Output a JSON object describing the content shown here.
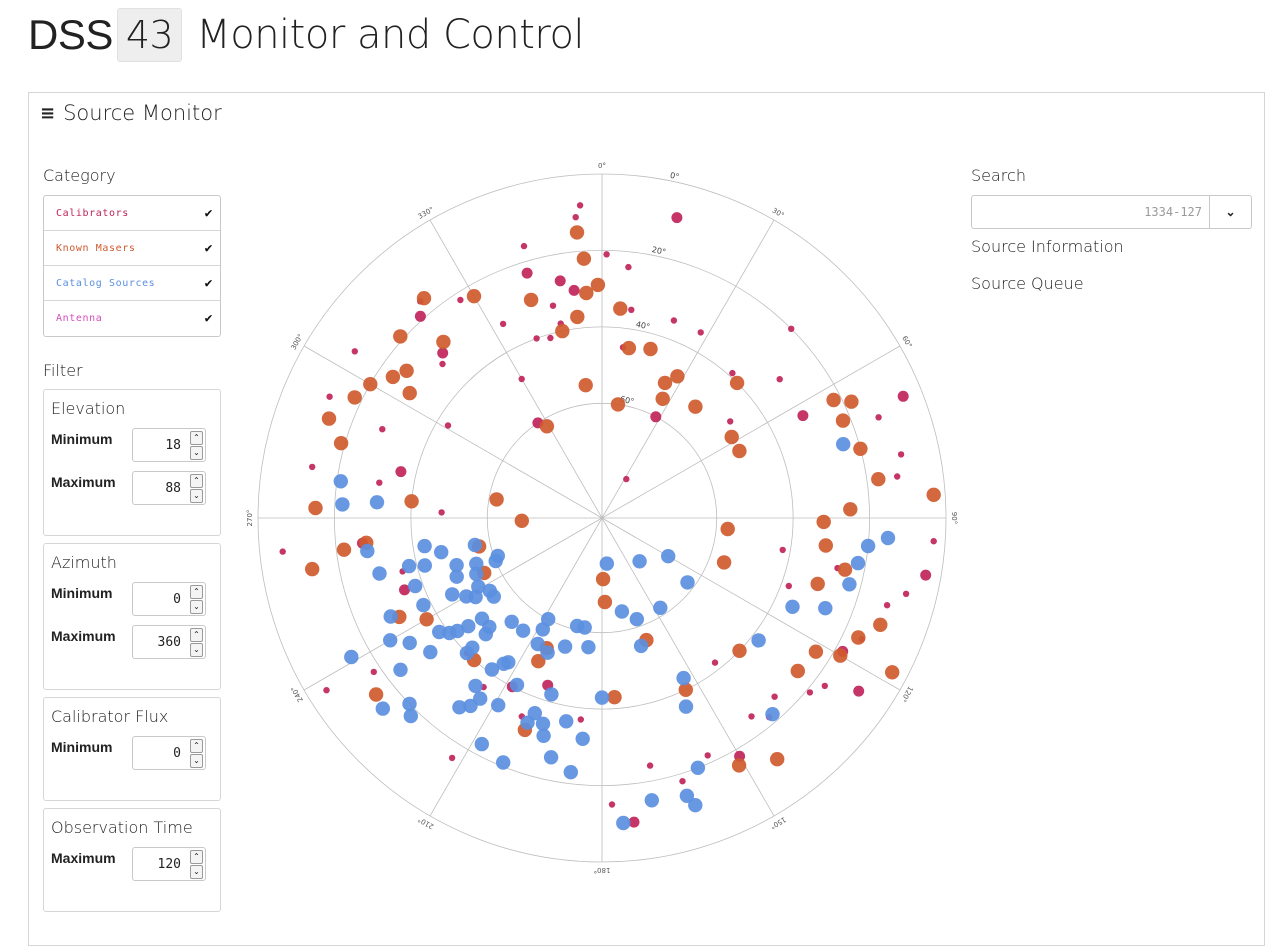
{
  "header": {
    "prefix": "DSS",
    "station": "43",
    "title": "Monitor and Control"
  },
  "panel": {
    "title": "Source Monitor"
  },
  "category": {
    "label": "Category",
    "items": [
      {
        "label": "Calibrators",
        "color": "#c0245a"
      },
      {
        "label": "Known Masers",
        "color": "#cf5a2e"
      },
      {
        "label": "Catalog Sources",
        "color": "#5b8fe0"
      },
      {
        "label": "Antenna",
        "color": "#d44fbd"
      }
    ]
  },
  "filter": {
    "label": "Filter",
    "elevation": {
      "title": "Elevation",
      "min_label": "Minimum",
      "min": "18",
      "max_label": "Maximum",
      "max": "88"
    },
    "azimuth": {
      "title": "Azimuth",
      "min_label": "Minimum",
      "min": "0",
      "max_label": "Maximum",
      "max": "360"
    },
    "calibrator_flux": {
      "title": "Calibrator Flux",
      "min_label": "Minimum",
      "min": "0"
    },
    "observation_time": {
      "title": "Observation Time",
      "max_label": "Maximum",
      "max": "120"
    }
  },
  "search": {
    "label": "Search",
    "placeholder": "1334-127"
  },
  "links": {
    "source_information": "Source Information",
    "source_queue": "Source Queue"
  },
  "chart_data": {
    "type": "scatter",
    "coordinate_system": "polar",
    "angle_ticks": [
      "0°",
      "30°",
      "60°",
      "90°",
      "120°",
      "150°",
      "180°",
      "210°",
      "240°",
      "270°",
      "300°",
      "330°"
    ],
    "radial_ticks": [
      "0°",
      "20°",
      "40°",
      "60°"
    ],
    "radial_range_elevation": [
      90,
      0
    ],
    "series": [
      {
        "name": "Calibrators",
        "color": "#c0245a",
        "points": [
          [
            326,
            60
          ],
          [
            356,
            8
          ],
          [
            7,
            45
          ],
          [
            32,
            78
          ],
          [
            28,
            60
          ],
          [
            45,
            20
          ],
          [
            53,
            48
          ],
          [
            78,
            10
          ],
          [
            68,
            5
          ],
          [
            82,
            12
          ],
          [
            70,
            13
          ],
          [
            94,
            3
          ],
          [
            100,
            4
          ],
          [
            104,
            8
          ],
          [
            107,
            12
          ],
          [
            115,
            15
          ],
          [
            124,
            9
          ],
          [
            130,
            19
          ],
          [
            140,
            22
          ],
          [
            143,
            25
          ],
          [
            150,
            18
          ],
          [
            156,
            22
          ],
          [
            163,
            18
          ],
          [
            169,
            24
          ],
          [
            174,
            10
          ],
          [
            178,
            15
          ],
          [
            186,
            37
          ],
          [
            202,
            34
          ],
          [
            208,
            40
          ],
          [
            215,
            36
          ],
          [
            225,
            40
          ],
          [
            236,
            18
          ],
          [
            250,
            35
          ],
          [
            264,
            6
          ],
          [
            272,
            48
          ],
          [
            280,
            13
          ],
          [
            283,
            36
          ],
          [
            292,
            28
          ],
          [
            301,
            43
          ],
          [
            304,
            12
          ],
          [
            316,
            30
          ],
          [
            320,
            16
          ],
          [
            327,
            22
          ],
          [
            333,
            33
          ],
          [
            343,
            23
          ],
          [
            344,
            16
          ],
          [
            344,
            41
          ],
          [
            347,
            33
          ],
          [
            350,
            27
          ],
          [
            355,
            11
          ],
          [
            1,
            21
          ],
          [
            8,
            35
          ],
          [
            14,
            9
          ],
          [
            20,
            35
          ],
          [
            42,
            39
          ],
          [
            52,
            31
          ],
          [
            63,
            31
          ],
          [
            100,
            42
          ],
          [
            102,
            27
          ],
          [
            110,
            38
          ],
          [
            119,
            18
          ],
          [
            127,
            17
          ],
          [
            136,
            25
          ],
          [
            142,
            42
          ],
          [
            198,
            44
          ],
          [
            212,
            16
          ],
          [
            238,
            5
          ],
          [
            255,
            36
          ],
          [
            264,
            27
          ],
          [
            279,
            31
          ],
          [
            294,
            12
          ],
          [
            314,
            32
          ],
          [
            318,
            19
          ],
          [
            330,
            48
          ],
          [
            340,
            40
          ],
          [
            348,
            38
          ],
          [
            353,
            30
          ],
          [
            6,
            24
          ],
          [
            28,
            35
          ]
        ]
      },
      {
        "name": "Known Masers",
        "color": "#cf5a2e",
        "points": [
          [
            353,
            37
          ],
          [
            356,
            31
          ],
          [
            359,
            29
          ],
          [
            356,
            22
          ],
          [
            355,
            15
          ],
          [
            348,
            40
          ],
          [
            342,
            30
          ],
          [
            330,
            23
          ],
          [
            321,
            16
          ],
          [
            318,
            28
          ],
          [
            312,
            19
          ],
          [
            307,
            26
          ],
          [
            304,
            24
          ],
          [
            303,
            30
          ],
          [
            300,
            20
          ],
          [
            296,
            18
          ],
          [
            290,
            14
          ],
          [
            286,
            19
          ],
          [
            272,
            15
          ],
          [
            264,
            28
          ],
          [
            263,
            22
          ],
          [
            260,
            13
          ],
          [
            240,
            37
          ],
          [
            245,
            56
          ],
          [
            200,
            31
          ],
          [
            203,
            53
          ],
          [
            204,
            49
          ],
          [
            222,
            40
          ],
          [
            232,
            15
          ],
          [
            244,
            31
          ],
          [
            257,
            57
          ],
          [
            268,
            69
          ],
          [
            275,
            40
          ],
          [
            329,
            62
          ],
          [
            25,
            51
          ],
          [
            27,
            55
          ],
          [
            16,
            44
          ],
          [
            8,
            60
          ],
          [
            5,
            35
          ],
          [
            9,
            45
          ],
          [
            40,
            52
          ],
          [
            63,
            22
          ],
          [
            65,
            18
          ],
          [
            68,
            22
          ],
          [
            75,
            20
          ],
          [
            82,
            17
          ],
          [
            86,
            3
          ],
          [
            88,
            25
          ],
          [
            91,
            32
          ],
          [
            97,
            31
          ],
          [
            102,
            25
          ],
          [
            107,
            31
          ],
          [
            111,
            12
          ],
          [
            115,
            16
          ],
          [
            118,
            4
          ],
          [
            120,
            18
          ],
          [
            122,
            24
          ],
          [
            128,
            25
          ],
          [
            134,
            40
          ],
          [
            144,
            12
          ],
          [
            151,
            16
          ],
          [
            154,
            40
          ],
          [
            160,
            56
          ],
          [
            176,
            43
          ],
          [
            178,
            68
          ],
          [
            179,
            74
          ],
          [
            353,
            55
          ],
          [
            28,
            48
          ],
          [
            45,
            40
          ],
          [
            58,
            50
          ],
          [
            64,
            50
          ],
          [
            95,
            57
          ],
          [
            110,
            56
          ],
          [
            280,
            62
          ]
        ]
      },
      {
        "name": "Catalog Sources",
        "color": "#5b8fe0",
        "points": [
          [
            199,
            36
          ],
          [
            213,
            45
          ],
          [
            232,
            42
          ],
          [
            225,
            42
          ],
          [
            225,
            47
          ],
          [
            208,
            57
          ],
          [
            208,
            60
          ],
          [
            224,
            18
          ],
          [
            217,
            35
          ],
          [
            217,
            28
          ],
          [
            237,
            30
          ],
          [
            245,
            29
          ],
          [
            229,
            14
          ],
          [
            215,
            30
          ],
          [
            226,
            20
          ],
          [
            233,
            24
          ],
          [
            241,
            53
          ],
          [
            237,
            55
          ],
          [
            243,
            46
          ],
          [
            234,
            55
          ],
          [
            248,
            49
          ],
          [
            235,
            38
          ],
          [
            241,
            15
          ],
          [
            231,
            45
          ],
          [
            230,
            49
          ],
          [
            214,
            33
          ],
          [
            225,
            40
          ],
          [
            221,
            54
          ],
          [
            215,
            54
          ],
          [
            202,
            52
          ],
          [
            207,
            53
          ],
          [
            196,
            42
          ],
          [
            196,
            55
          ],
          [
            193,
            61
          ],
          [
            189,
            61
          ],
          [
            180,
            43
          ],
          [
            159,
            20
          ],
          [
            156,
            36
          ],
          [
            163,
            14
          ],
          [
            162,
            11
          ],
          [
            170,
            15
          ],
          [
            176,
            10
          ],
          [
            185,
            32
          ],
          [
            187,
            23
          ],
          [
            196,
            34
          ],
          [
            200,
            33
          ],
          [
            192,
            26
          ],
          [
            190,
            36
          ],
          [
            209,
            34
          ],
          [
            233,
            40
          ],
          [
            244,
            38
          ],
          [
            250,
            38
          ],
          [
            202,
            21
          ],
          [
            250,
            55
          ],
          [
            258,
            56
          ],
          [
            256,
            38
          ],
          [
            256,
            30
          ],
          [
            262,
            28
          ],
          [
            274,
            31
          ],
          [
            273,
            22
          ],
          [
            278,
            21
          ],
          [
            252,
            50
          ],
          [
            246,
            54
          ],
          [
            238,
            51
          ],
          [
            226,
            49
          ],
          [
            214,
            44
          ],
          [
            195,
            31
          ],
          [
            168,
            65
          ],
          [
            161,
            62
          ],
          [
            163,
            55
          ],
          [
            153,
            43
          ],
          [
            139,
            22
          ],
          [
            128,
            38
          ],
          [
            112,
            27
          ],
          [
            105,
            23
          ],
          [
            100,
            22
          ],
          [
            96,
            20
          ],
          [
            94,
            15
          ],
          [
            73,
            24
          ],
          [
            115,
            35
          ],
          [
            120,
            70
          ],
          [
            127,
            62
          ],
          [
            139,
            75
          ],
          [
            147,
            62
          ],
          [
            174,
            78
          ],
          [
            186,
            56
          ],
          [
            232,
            33
          ],
          [
            240,
            26
          ],
          [
            240,
            49
          ],
          [
            248,
            60
          ],
          [
            250,
            61
          ],
          [
            255,
            42
          ],
          [
            261,
            43
          ],
          [
            258,
            47
          ],
          [
            216,
            41
          ],
          [
            207,
            41
          ],
          [
            208,
            23
          ]
        ]
      },
      {
        "name": "Antenna",
        "color": "#d44fbd",
        "points": []
      }
    ]
  }
}
